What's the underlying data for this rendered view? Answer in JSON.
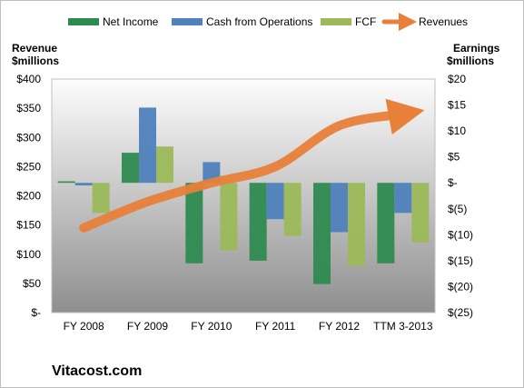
{
  "chart_data": {
    "type": "bar",
    "categories": [
      "FY 2008",
      "FY 2009",
      "FY 2010",
      "FY 2011",
      "FY 2012",
      "TTM 3-2013"
    ],
    "series": [
      {
        "name": "Net Income",
        "axis": "right",
        "kind": "bar",
        "color": "#2e8b50",
        "values": [
          0.3,
          5.8,
          -15.5,
          -15.0,
          -19.5,
          -15.5
        ]
      },
      {
        "name": "Cash from Operations",
        "axis": "right",
        "kind": "bar",
        "color": "#4f81bd",
        "values": [
          -0.5,
          14.5,
          4.0,
          -7.0,
          -9.5,
          -5.8
        ]
      },
      {
        "name": "FCF",
        "axis": "right",
        "kind": "bar",
        "color": "#9bbb59",
        "values": [
          -5.8,
          7.0,
          -13.0,
          -10.2,
          -16.0,
          -11.5
        ]
      },
      {
        "name": "Revenues",
        "axis": "left",
        "kind": "line",
        "color": "#e8803a",
        "values": [
          145,
          190,
          222,
          250,
          320,
          340
        ]
      }
    ],
    "left_axis": {
      "title_line1": "Revenue",
      "title_line2": "$millions",
      "min": 0,
      "max": 400,
      "step": 50,
      "ticks": [
        "$-",
        "$50",
        "$100",
        "$150",
        "$200",
        "$250",
        "$300",
        "$350",
        "$400"
      ]
    },
    "right_axis": {
      "title_line1": "Earnings",
      "title_line2": "$millions",
      "min": -25,
      "max": 20,
      "step": 5,
      "ticks": [
        "$(25)",
        "$(20)",
        "$(15)",
        "$(10)",
        "$(5)",
        "$-",
        "$5",
        "$10",
        "$15",
        "$20"
      ]
    },
    "grid": false,
    "legend_position": "top"
  },
  "footer": {
    "brand": "Vitacost.com"
  }
}
